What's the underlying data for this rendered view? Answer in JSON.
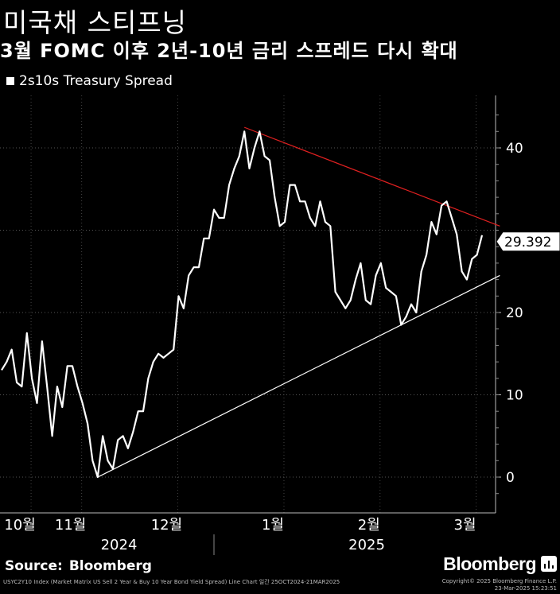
{
  "header": {
    "title": "미국채 스티프닝",
    "subtitle": "3월 FOMC 이후 2년-10년 금리 스프레드 다시 확대",
    "legend_label": "2s10s Treasury Spread"
  },
  "chart_data": {
    "type": "line",
    "series": [
      {
        "name": "2s10s Treasury Spread",
        "color": "#ffffff",
        "values": [
          13,
          14,
          15.5,
          11.5,
          11,
          17.5,
          12,
          9,
          16.5,
          11,
          5,
          11,
          8.5,
          13.5,
          13.5,
          11,
          9,
          6.5,
          2,
          0,
          5,
          2,
          1,
          4.5,
          5,
          3.5,
          5.5,
          8,
          8,
          12,
          14,
          15,
          14.5,
          15,
          15.5,
          22,
          20.5,
          24.5,
          25.5,
          25.5,
          29,
          29,
          32.5,
          31.5,
          31.5,
          35.5,
          37.5,
          39,
          42,
          37.5,
          40,
          42,
          39,
          38.5,
          34,
          30.5,
          31,
          35.5,
          35.5,
          33.5,
          33.5,
          31.5,
          30.5,
          33.5,
          31,
          30.5,
          22.5,
          21.5,
          20.5,
          21.5,
          24,
          26,
          21.5,
          21,
          24.5,
          26,
          23,
          22.5,
          22,
          18.5,
          19.5,
          21,
          20,
          25,
          27,
          31,
          29.5,
          33,
          33.5,
          31.5,
          29.5,
          25,
          24,
          26.5,
          27,
          29.392
        ]
      },
      {
        "name": "",
        "kind": "trendline-upper",
        "color": "#e02020",
        "points": [
          [
            48,
            42.5
          ],
          [
            96,
            30.5
          ]
        ]
      },
      {
        "name": "",
        "kind": "trendline-lower",
        "color": "#ffffff",
        "points": [
          [
            19,
            0
          ],
          [
            96,
            24.5
          ]
        ]
      }
    ],
    "x_ticks": [
      {
        "label": "10월",
        "index": 3
      },
      {
        "label": "11월",
        "index": 13
      },
      {
        "label": "12월",
        "index": 32
      },
      {
        "label": "1월",
        "index": 53
      },
      {
        "label": "2월",
        "index": 72
      },
      {
        "label": "3월",
        "index": 91
      }
    ],
    "x_year_labels": [
      {
        "label": "2024",
        "index": 21
      },
      {
        "label": "2025",
        "index": 70
      }
    ],
    "y_ticks": [
      0,
      10,
      20,
      40
    ],
    "ylim": [
      -4,
      46
    ],
    "last_value_label": "29.392",
    "grid": "horizontal dotted",
    "legend_position": "top-left"
  },
  "footer": {
    "source_label": "Source:",
    "source_name": "Bloomberg",
    "brand": "Bloomberg",
    "meta_left": "USYC2Y10 Index (Market Matrix US Sell 2 Year & Buy 10 Year Bond Yield Spread) Line Chart 일간 25OCT2024-21MAR2025",
    "meta_right_1": "Copyright© 2025 Bloomberg Finance L.P.",
    "meta_right_2": "23-Mar-2025 15:23:51"
  }
}
